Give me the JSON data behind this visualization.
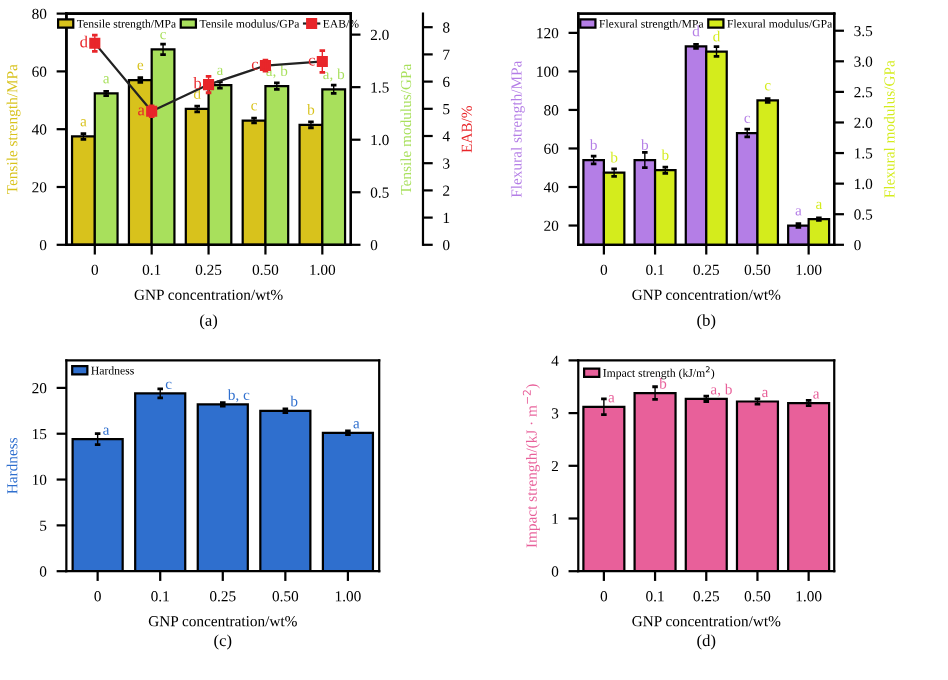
{
  "chart_data": [
    {
      "type": "bar",
      "categories": [
        "0",
        "0.1",
        "0.25",
        "0.50",
        "1.00"
      ],
      "xlabel": "GNP concentration/wt%",
      "ylabel": "Tensile strength/MPa",
      "y2label": "Tensile modulus/GPa",
      "y3label": "EAB/%",
      "ylim": [
        0,
        80
      ],
      "yticks": [
        0,
        20,
        40,
        60,
        80
      ],
      "y2lim": [
        0,
        2.2
      ],
      "y2ticks": [
        0,
        0.5,
        {
          "value": 1,
          "label": "1.0"
        },
        1.5,
        {
          "value": 2,
          "label": "2.0"
        }
      ],
      "y3lim": [
        0,
        8.5
      ],
      "y3ticks": [
        0,
        1,
        2,
        3,
        4,
        5,
        6,
        7,
        8
      ],
      "legend": "top",
      "annotations": [
        "(a)"
      ],
      "series": [
        {
          "name": "Tensile strength/MPa",
          "color": "#d8c21c",
          "values": [
            37.5,
            57,
            47,
            43,
            41.5
          ],
          "errors": [
            1,
            0.8,
            1,
            0.8,
            1
          ],
          "value_labels": [
            "a",
            "e",
            "d",
            "c",
            "b"
          ]
        },
        {
          "name": "Tensile modulus/GPa",
          "color": "#a8e05c",
          "axis": "y2",
          "values": [
            1.44,
            1.86,
            1.52,
            1.51,
            1.48
          ],
          "errors": [
            0.02,
            0.05,
            0.03,
            0.03,
            0.04
          ],
          "value_labels": [
            "a",
            "c",
            "a",
            "a, b",
            "a, b"
          ]
        },
        {
          "name": "EAB/%",
          "type": "line",
          "color": "#e8262a",
          "axis": "y3",
          "marker": "square",
          "values": [
            7.41,
            4.91,
            5.89,
            6.59,
            6.74
          ],
          "errors": [
            0.3,
            0.2,
            0.3,
            0.2,
            0.4
          ],
          "value_labels": [
            "d",
            "a",
            "b",
            "c",
            "c"
          ]
        }
      ]
    },
    {
      "type": "bar",
      "categories": [
        "0",
        "0.1",
        "0.25",
        "0.50",
        "1.00"
      ],
      "xlabel": "GNP concentration/wt%",
      "ylabel": "Flexural strength/MPa",
      "y2label": "Flexural modulus/GPa",
      "ylim": [
        10,
        130
      ],
      "yticks": [
        20,
        40,
        60,
        80,
        100,
        120
      ],
      "y2lim": [
        0,
        3.78
      ],
      "y2ticks": [
        0,
        0.5,
        {
          "value": 1,
          "label": "1.0"
        },
        1.5,
        {
          "value": 2,
          "label": "2.0"
        },
        2.5,
        {
          "value": 3,
          "label": "3.0"
        },
        3.5
      ],
      "legend": "top",
      "annotations": [
        "(b)"
      ],
      "series": [
        {
          "name": "Flexural strength/MPa",
          "color": "#b47ee6",
          "values": [
            54,
            54,
            113,
            68,
            20
          ],
          "errors": [
            2,
            4,
            1,
            2,
            1
          ],
          "value_labels": [
            "b",
            "b",
            "d",
            "c",
            "a"
          ]
        },
        {
          "name": "Flexural modulus/GPa",
          "color": "#d4ec1c",
          "axis": "y2",
          "values": [
            1.18,
            1.22,
            3.16,
            2.36,
            0.42
          ],
          "errors": [
            0.06,
            0.05,
            0.08,
            0.03,
            0.02
          ],
          "value_labels": [
            "b",
            "b",
            "d",
            "c",
            "a"
          ]
        }
      ]
    },
    {
      "type": "bar",
      "categories": [
        "0",
        "0.1",
        "0.25",
        "0.50",
        "1.00"
      ],
      "xlabel": "GNP concentration/wt%",
      "ylabel": "Hardness",
      "ylim": [
        0,
        23
      ],
      "yticks": [
        0,
        5,
        10,
        15,
        20
      ],
      "legend": "top left",
      "annotations": [
        "(c)"
      ],
      "series": [
        {
          "name": "Hardness",
          "color": "#2f6fce",
          "values": [
            14.4,
            19.4,
            18.2,
            17.5,
            15.1
          ],
          "errors": [
            0.6,
            0.5,
            0.2,
            0.2,
            0.2
          ],
          "value_labels": [
            "a",
            "c",
            "b, c",
            "b",
            "a"
          ]
        }
      ]
    },
    {
      "type": "bar",
      "categories": [
        "0",
        "0.1",
        "0.25",
        "0.50",
        "1.00"
      ],
      "xlabel": "GNP concentration/wt%",
      "ylabel": "Impact strength/(kJ · m$^{−2}$)",
      "ylim": [
        0,
        4
      ],
      "yticks": [
        0,
        1,
        2,
        3,
        4
      ],
      "legend": "top left",
      "annotations": [
        "(d)"
      ],
      "series": [
        {
          "name": "Impact strength (kJ/m$^{2}$)",
          "color": "#e8609a",
          "values": [
            3.12,
            3.38,
            3.27,
            3.22,
            3.19
          ],
          "errors": [
            0.15,
            0.12,
            0.05,
            0.05,
            0.05
          ],
          "value_labels": [
            "a",
            "b",
            "a, b",
            "a",
            "a"
          ]
        }
      ]
    }
  ]
}
